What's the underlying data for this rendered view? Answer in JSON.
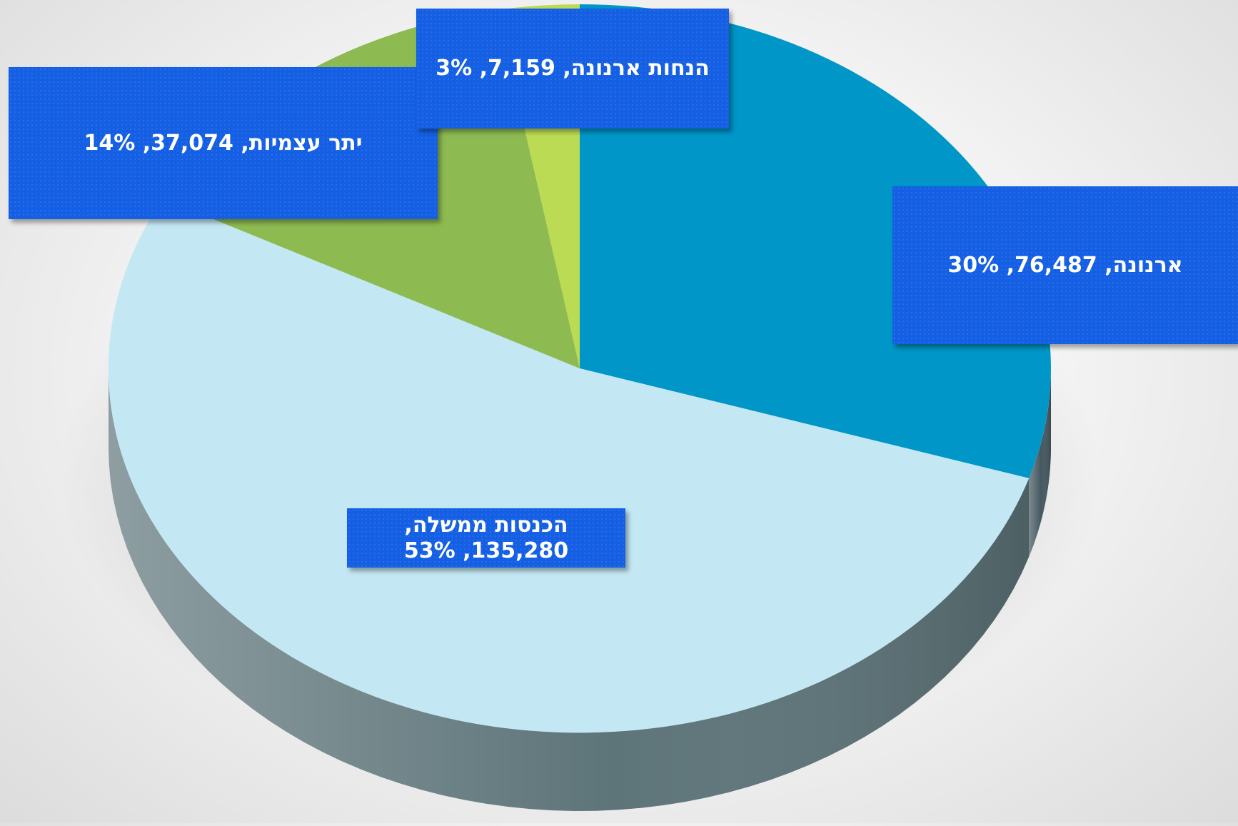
{
  "chart_data": {
    "type": "pie",
    "style": "3d",
    "title": "",
    "slices": [
      {
        "label": "ארנונה",
        "value": 76487,
        "percent": 30,
        "color": "#0096c8",
        "side_color": "#455860"
      },
      {
        "label": "הכנסות ממשלה",
        "value": 135280,
        "percent": 53,
        "color": "#c3e8f4",
        "side_color": "#5d7479"
      },
      {
        "label": "יתר עצמיות",
        "value": 37074,
        "percent": 14,
        "color": "#8dbb52",
        "side_color": "#4f6a2e"
      },
      {
        "label": "הנחות ארנונה",
        "value": 7159,
        "percent": 3,
        "color": "#bcdb55",
        "side_color": "#67782e"
      }
    ],
    "data_labels": [
      "ארנונה, 76,487, 30%",
      "הכנסות ממשלה, 135,280, 53%",
      "יתר עצמיות, 37,074, 14%",
      "הנחות ארנונה, 7,159, 3%"
    ],
    "label_box_color": "#145fe3"
  }
}
